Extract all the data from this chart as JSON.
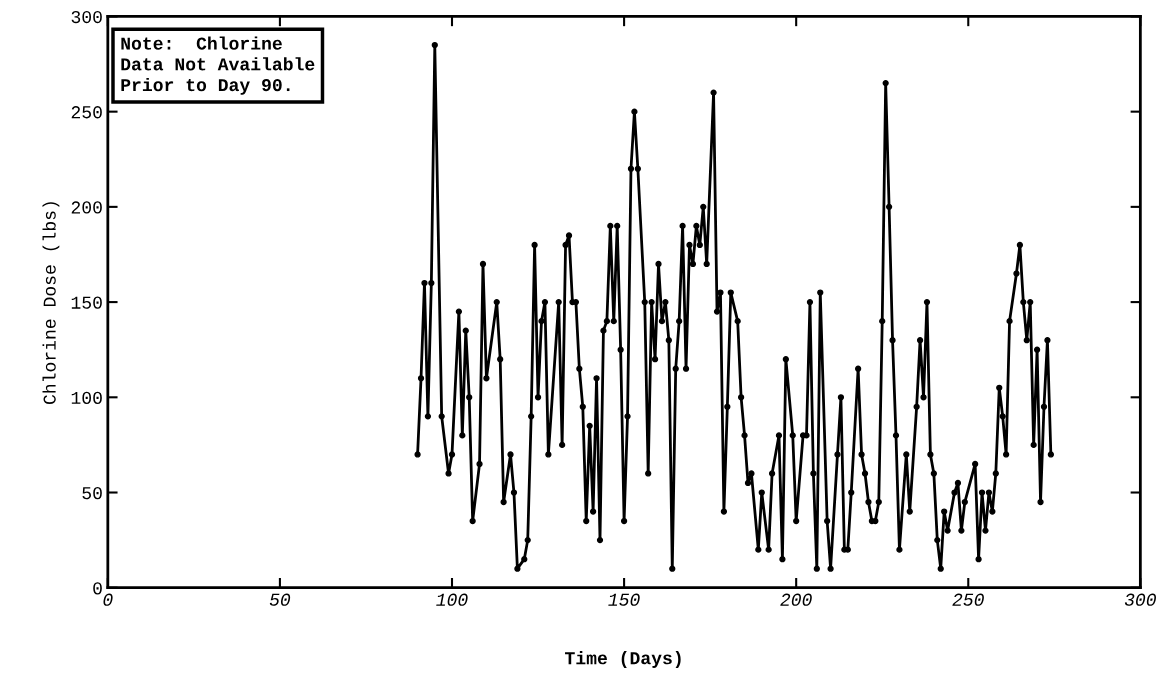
{
  "chart_data": {
    "type": "line",
    "xlabel": "Time (Days)",
    "ylabel": "Chlorine Dose (lbs)",
    "xlim": [
      0,
      300
    ],
    "ylim": [
      0,
      300
    ],
    "xticks": [
      0,
      50,
      100,
      150,
      200,
      250,
      300
    ],
    "yticks": [
      0,
      50,
      100,
      150,
      200,
      250,
      300
    ],
    "grid": false,
    "marker": "circle",
    "line_style": "solid",
    "annotations": [
      "Note:  Chlorine\nData Not Available\nPrior to Day 90."
    ],
    "series": [
      {
        "color": "#000000",
        "x": [
          90,
          91,
          92,
          93,
          94,
          95,
          97,
          99,
          100,
          102,
          103,
          104,
          105,
          106,
          108,
          109,
          110,
          113,
          114,
          115,
          117,
          118,
          119,
          121,
          122,
          123,
          124,
          125,
          126,
          127,
          128,
          131,
          132,
          133,
          134,
          135,
          136,
          137,
          138,
          139,
          140,
          141,
          142,
          143,
          144,
          145,
          146,
          147,
          148,
          149,
          150,
          151,
          152,
          153,
          154,
          156,
          157,
          158,
          159,
          160,
          161,
          162,
          163,
          164,
          165,
          166,
          167,
          168,
          169,
          170,
          171,
          172,
          173,
          174,
          176,
          177,
          178,
          179,
          180,
          181,
          183,
          184,
          185,
          186,
          187,
          189,
          190,
          192,
          193,
          195,
          196,
          197,
          199,
          200,
          202,
          203,
          204,
          205,
          206,
          207,
          209,
          210,
          212,
          213,
          214,
          215,
          216,
          218,
          219,
          220,
          221,
          222,
          223,
          224,
          225,
          226,
          227,
          228,
          229,
          230,
          232,
          233,
          235,
          236,
          237,
          238,
          239,
          240,
          241,
          242,
          243,
          244,
          246,
          247,
          248,
          249,
          252,
          253,
          254,
          255,
          256,
          257,
          258,
          259,
          260,
          261,
          262,
          264,
          265,
          266,
          267,
          268,
          269,
          270,
          271,
          272,
          273,
          274
        ],
        "values": [
          70,
          110,
          160,
          90,
          160,
          285,
          90,
          60,
          70,
          145,
          80,
          135,
          100,
          35,
          65,
          170,
          110,
          150,
          120,
          45,
          70,
          50,
          10,
          15,
          25,
          90,
          180,
          100,
          140,
          150,
          70,
          150,
          75,
          180,
          185,
          150,
          150,
          115,
          95,
          35,
          85,
          40,
          110,
          25,
          135,
          140,
          190,
          140,
          190,
          125,
          35,
          90,
          220,
          250,
          220,
          150,
          60,
          150,
          120,
          170,
          140,
          150,
          130,
          10,
          115,
          140,
          190,
          115,
          180,
          170,
          190,
          180,
          200,
          170,
          260,
          145,
          155,
          40,
          95,
          155,
          140,
          100,
          80,
          55,
          60,
          20,
          50,
          20,
          60,
          80,
          15,
          120,
          80,
          35,
          80,
          80,
          150,
          60,
          10,
          155,
          35,
          10,
          70,
          100,
          20,
          20,
          50,
          115,
          70,
          60,
          45,
          35,
          35,
          45,
          140,
          265,
          200,
          130,
          80,
          20,
          70,
          40,
          95,
          130,
          100,
          150,
          70,
          60,
          25,
          10,
          40,
          30,
          50,
          55,
          30,
          45,
          65,
          15,
          50,
          30,
          50,
          40,
          60,
          105,
          90,
          70,
          140,
          165,
          180,
          150,
          130,
          150,
          75,
          125,
          45,
          95,
          130,
          70
        ]
      }
    ]
  }
}
